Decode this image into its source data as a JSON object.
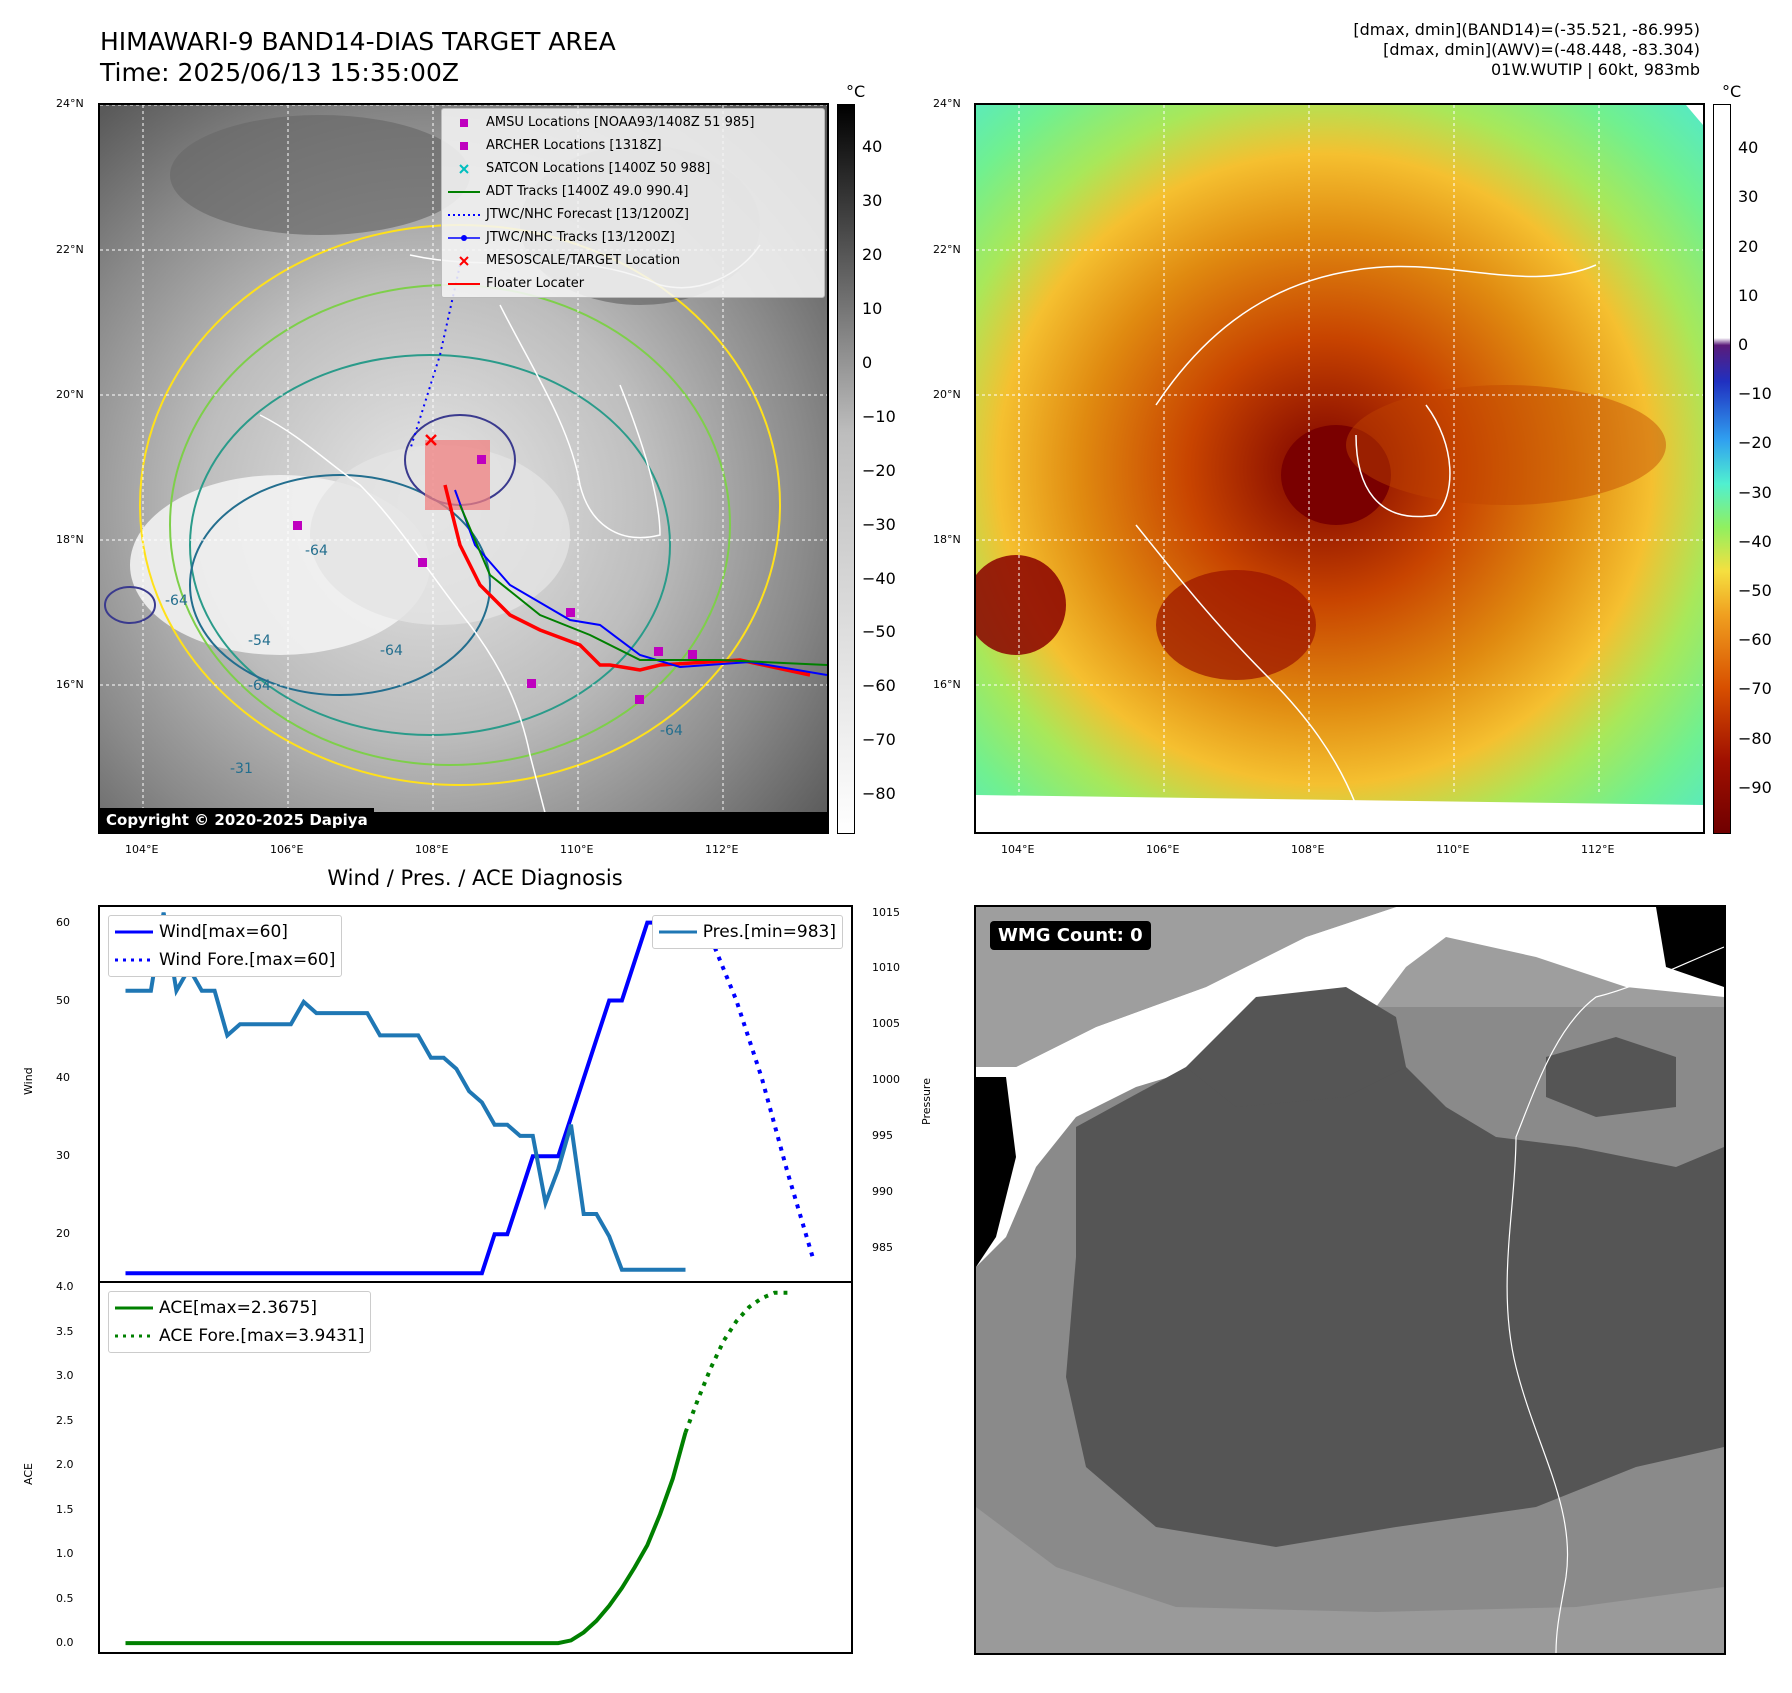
{
  "header": {
    "title_line1": "HIMAWARI-9 BAND14-DIAS TARGET AREA",
    "title_line2": "Time: 2025/06/13 15:35:00Z",
    "info_line1": "[dmax, dmin](BAND14)=(-35.521, -86.995)",
    "info_line2": "[dmax, dmin](AWV)=(-48.448, -83.304)",
    "info_line3": "01W.WUTIP | 60kt, 983mb"
  },
  "maps": {
    "lat_labels": [
      "24°N",
      "22°N",
      "20°N",
      "18°N",
      "16°N"
    ],
    "lon_labels": [
      "104°E",
      "106°E",
      "108°E",
      "110°E",
      "112°E"
    ],
    "copyright": "Copyright © 2020-2025 Dapiya",
    "cb_unit": "°C",
    "cb1_ticks": [
      "40",
      "30",
      "20",
      "10",
      "0",
      "−10",
      "−20",
      "−30",
      "−40",
      "−50",
      "−60",
      "−70",
      "−80"
    ],
    "cb2_ticks": [
      "40",
      "30",
      "20",
      "10",
      "0",
      "−10",
      "−20",
      "−30",
      "−40",
      "−50",
      "−60",
      "−70",
      "−80",
      "−90"
    ],
    "contour_labels": [
      "-64",
      "-64",
      "-54",
      "-64",
      "-64",
      "-64",
      "-31"
    ],
    "legend": [
      {
        "label": "AMSU Locations [NOAA93/1408Z 51 985]",
        "color": "#bf00bf",
        "symbol": "square"
      },
      {
        "label": "ARCHER Locations [1318Z]",
        "color": "#bf00bf",
        "symbol": "square"
      },
      {
        "label": "SATCON Locations [1400Z 50 988]",
        "color": "#00bfbf",
        "symbol": "x"
      },
      {
        "label": "ADT Tracks [1400Z 49.0 990.4]",
        "color": "#008000",
        "symbol": "line"
      },
      {
        "label": "JTWC/NHC Forecast [13/1200Z]",
        "color": "#0000ff",
        "symbol": "dotted"
      },
      {
        "label": "JTWC/NHC Tracks [13/1200Z]",
        "color": "#0000ff",
        "symbol": "line-dot"
      },
      {
        "label": "MESOSCALE/TARGET Location",
        "color": "#ff0000",
        "symbol": "x"
      },
      {
        "label": "Floater Locater",
        "color": "#ff0000",
        "symbol": "line"
      }
    ]
  },
  "wmg": {
    "label": "WMG Count: 0"
  },
  "chart_data": [
    {
      "type": "line",
      "title": "Wind / Pres. / ACE Diagnosis",
      "ylabel": "Wind",
      "y2label": "Pressure",
      "ylim": [
        14,
        62
      ],
      "y2lim": [
        982,
        1015.5
      ],
      "yticks": [
        20,
        30,
        40,
        50,
        60
      ],
      "y2ticks": [
        985,
        990,
        995,
        1000,
        1005,
        1010,
        1015
      ],
      "series": [
        {
          "name": "Wind[max=60]",
          "color": "#0000ff",
          "style": "solid",
          "axis": "left",
          "x": [
            0,
            1,
            2,
            3,
            4,
            5,
            6,
            7,
            8,
            9,
            10,
            11,
            12,
            13,
            14,
            15,
            16,
            17,
            18,
            19,
            20,
            21,
            22,
            23,
            24,
            25,
            26,
            27,
            28,
            29,
            30,
            31,
            32,
            33,
            34,
            35,
            36,
            37,
            38,
            39,
            40,
            41,
            42,
            43,
            44
          ],
          "values": [
            15,
            15,
            15,
            15,
            15,
            15,
            15,
            15,
            15,
            15,
            15,
            15,
            15,
            15,
            15,
            15,
            15,
            15,
            15,
            15,
            15,
            15,
            15,
            15,
            15,
            15,
            15,
            15,
            15,
            20,
            20,
            25,
            30,
            30,
            30,
            35,
            40,
            45,
            50,
            50,
            55,
            60,
            60,
            60,
            60
          ]
        },
        {
          "name": "Wind Fore.[max=60]",
          "color": "#0000ff",
          "style": "dotted",
          "axis": "left",
          "x": [
            44,
            46,
            48,
            50,
            52,
            54
          ],
          "values": [
            60,
            58,
            50,
            40,
            28,
            17
          ]
        },
        {
          "name": "Pres.[min=983]",
          "color": "#1f77b4",
          "style": "solid",
          "axis": "right",
          "x": [
            0,
            1,
            2,
            3,
            4,
            5,
            6,
            7,
            8,
            9,
            10,
            11,
            12,
            13,
            14,
            15,
            16,
            17,
            18,
            19,
            20,
            21,
            22,
            23,
            24,
            25,
            26,
            27,
            28,
            29,
            30,
            31,
            32,
            33,
            34,
            35,
            36,
            37,
            38,
            39,
            40,
            41,
            42,
            43,
            44
          ],
          "values": [
            1008,
            1008,
            1008,
            1015,
            1008,
            1010,
            1008,
            1008,
            1004,
            1005,
            1005,
            1005,
            1005,
            1005,
            1007,
            1006,
            1006,
            1006,
            1006,
            1006,
            1004,
            1004,
            1004,
            1004,
            1002,
            1002,
            1001,
            999,
            998,
            996,
            996,
            995,
            995,
            989,
            992,
            996,
            988,
            988,
            986,
            983,
            983,
            983,
            983,
            983,
            983
          ]
        }
      ],
      "x_range": [
        -2,
        57
      ]
    },
    {
      "type": "line",
      "ylabel": "ACE",
      "ylim": [
        -0.1,
        4.05
      ],
      "yticks": [
        "0.0",
        "0.5",
        "1.0",
        "1.5",
        "2.0",
        "2.5",
        "3.0",
        "3.5",
        "4.0"
      ],
      "series": [
        {
          "name": "ACE[max=2.3675]",
          "color": "#008000",
          "style": "solid",
          "x": [
            0,
            2,
            4,
            6,
            8,
            10,
            12,
            14,
            16,
            18,
            20,
            22,
            24,
            26,
            28,
            30,
            32,
            34,
            35,
            36,
            37,
            38,
            39,
            40,
            41,
            42,
            43,
            44
          ],
          "values": [
            0,
            0,
            0,
            0,
            0,
            0,
            0,
            0,
            0,
            0,
            0,
            0,
            0,
            0,
            0,
            0,
            0,
            0,
            0.03,
            0.12,
            0.25,
            0.42,
            0.62,
            0.85,
            1.1,
            1.45,
            1.85,
            2.37
          ]
        },
        {
          "name": "ACE Fore.[max=3.9431]",
          "color": "#008000",
          "style": "dotted",
          "x": [
            44,
            45,
            46,
            47,
            48,
            49,
            50,
            51,
            52
          ],
          "values": [
            2.37,
            2.75,
            3.1,
            3.4,
            3.62,
            3.78,
            3.88,
            3.94,
            3.94
          ]
        }
      ],
      "x_range": [
        -2,
        57
      ]
    }
  ]
}
